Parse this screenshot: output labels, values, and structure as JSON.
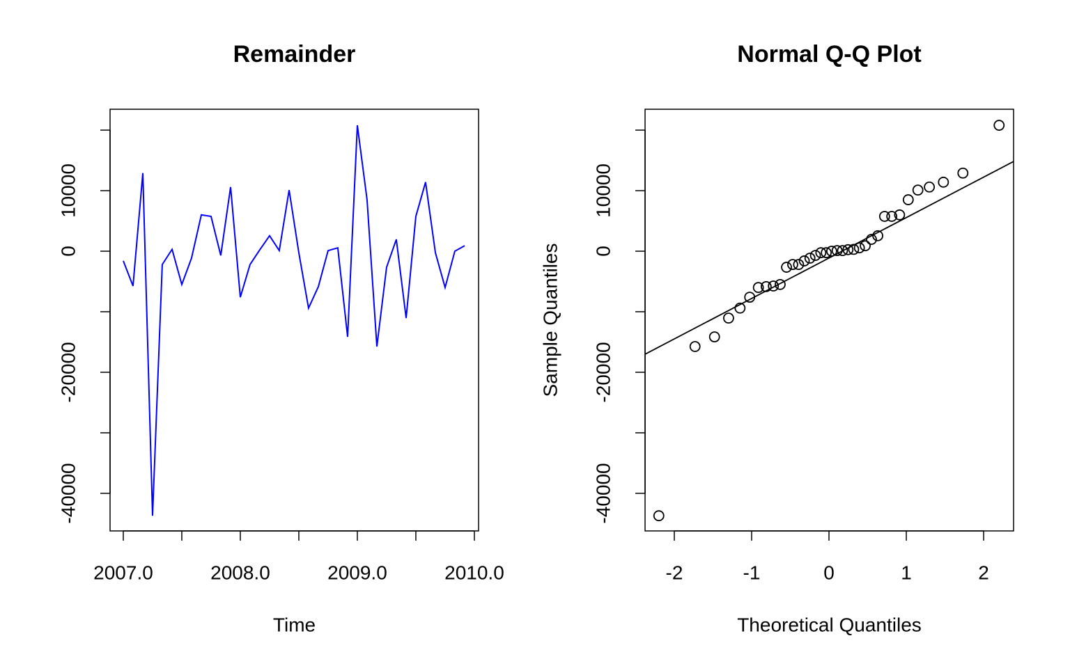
{
  "chart_data": [
    {
      "type": "line",
      "title": "Remainder",
      "xlabel": "Time",
      "x": [
        2007.0,
        2007.083,
        2007.167,
        2007.25,
        2007.333,
        2007.417,
        2007.5,
        2007.583,
        2007.667,
        2007.75,
        2007.833,
        2007.917,
        2008.0,
        2008.083,
        2008.167,
        2008.25,
        2008.333,
        2008.417,
        2008.5,
        2008.583,
        2008.667,
        2008.75,
        2008.833,
        2008.917,
        2009.0,
        2009.083,
        2009.167,
        2009.25,
        2009.333,
        2009.417,
        2009.5,
        2009.583,
        2009.667,
        2009.75,
        2009.833,
        2009.917
      ],
      "series": [
        {
          "color": "#0000ff",
          "values": [
            -1600,
            -5750,
            12900,
            -43700,
            -2200,
            300,
            -5500,
            -1150,
            6000,
            5750,
            -700,
            10600,
            -7600,
            -2200,
            250,
            2550,
            100,
            10100,
            -250,
            -9400,
            -5850,
            100,
            550,
            -14150,
            20800,
            8500,
            -15750,
            -2650,
            1950,
            -11050,
            5750,
            11400,
            -250,
            -6000,
            0,
            900
          ]
        }
      ],
      "xlim": [
        2006.887,
        2010.036
      ],
      "xticks": [
        {
          "value": 2007,
          "label": "2007.0"
        },
        {
          "value": 2007.5,
          "label": null
        },
        {
          "value": 2008,
          "label": "2008.0"
        },
        {
          "value": 2008.5,
          "label": null
        },
        {
          "value": 2009,
          "label": "2009.0"
        },
        {
          "value": 2009.5,
          "label": null
        },
        {
          "value": 2010,
          "label": "2010.0"
        }
      ],
      "ylim": [
        -46207,
        23448
      ],
      "yticks": [
        -40000,
        {
          "value": -30000,
          "label": null
        },
        -20000,
        {
          "value": -10000,
          "label": null
        },
        0,
        10000,
        {
          "value": 20000,
          "label": null
        }
      ]
    },
    {
      "type": "scatter",
      "title": "Normal Q-Q Plot",
      "xlabel": "Theoretical Quantiles",
      "ylabel": "Sample Quantiles",
      "x": [
        -2.2,
        -1.732,
        -1.48,
        -1.298,
        -1.15,
        -1.025,
        -0.913,
        -0.812,
        -0.719,
        -0.631,
        -0.549,
        -0.469,
        -0.393,
        -0.319,
        -0.246,
        -0.175,
        -0.105,
        -0.035,
        0.035,
        0.105,
        0.175,
        0.246,
        0.319,
        0.393,
        0.469,
        0.549,
        0.631,
        0.719,
        0.812,
        0.913,
        1.025,
        1.15,
        1.298,
        1.48,
        1.732,
        2.2
      ],
      "series": [
        {
          "color": "#000000",
          "values": [
            -43700,
            -15750,
            -14150,
            -11050,
            -9400,
            -7600,
            -6000,
            -5850,
            -5750,
            -5500,
            -2650,
            -2200,
            -2200,
            -1600,
            -1150,
            -700,
            -250,
            -250,
            0,
            100,
            100,
            250,
            300,
            550,
            900,
            1950,
            2550,
            5750,
            5750,
            6000,
            8500,
            10100,
            10600,
            11400,
            12900,
            20800
          ]
        }
      ],
      "reference_line": {
        "intercept": -1130,
        "slope": 6682
      },
      "xlim": [
        -2.378,
        2.387
      ],
      "xticks": [
        -2,
        -1,
        0,
        1,
        2
      ],
      "ylim": [
        -46207,
        23448
      ],
      "yticks": [
        -40000,
        {
          "value": -30000,
          "label": null
        },
        -20000,
        {
          "value": -10000,
          "label": null
        },
        0,
        10000,
        {
          "value": 20000,
          "label": null
        }
      ]
    }
  ]
}
